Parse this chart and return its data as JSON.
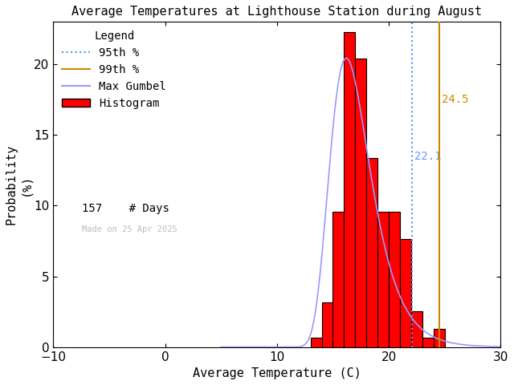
{
  "title": "Average Temperatures at Lighthouse Station during August",
  "xlabel": "Average Temperature (C)",
  "ylabel": "Probability\n(%)",
  "xlim": [
    -10,
    30
  ],
  "ylim": [
    0,
    23
  ],
  "yticks": [
    0,
    5,
    10,
    15,
    20
  ],
  "xticks": [
    -10,
    0,
    10,
    20,
    30
  ],
  "bin_left_edges": [
    13,
    14,
    15,
    16,
    17,
    18,
    19,
    20,
    21,
    22,
    23,
    24,
    25,
    26
  ],
  "bin_heights": [
    0.64,
    3.18,
    9.55,
    22.29,
    20.38,
    13.38,
    9.55,
    9.55,
    7.64,
    2.55,
    0.64,
    1.27,
    0.0,
    0.0
  ],
  "gumbel_color": "#9999ff",
  "gumbel_mu": 16.2,
  "gumbel_beta": 1.8,
  "hist_color": "#ff0000",
  "hist_edge_color": "#000000",
  "percentile_95": 22.1,
  "percentile_99": 24.5,
  "percentile_95_color": "#4499ff",
  "percentile_99_color": "#cc8800",
  "percentile_95_label_color": "#6699ff",
  "percentile_99_label_color": "#cc8800",
  "n_days": 157,
  "watermark": "Made on 25 Apr 2025",
  "watermark_color": "#bbbbbb",
  "background_color": "#ffffff",
  "title_fontsize": 11,
  "axis_fontsize": 11,
  "tick_labelsize": 11,
  "legend_fontsize": 10
}
